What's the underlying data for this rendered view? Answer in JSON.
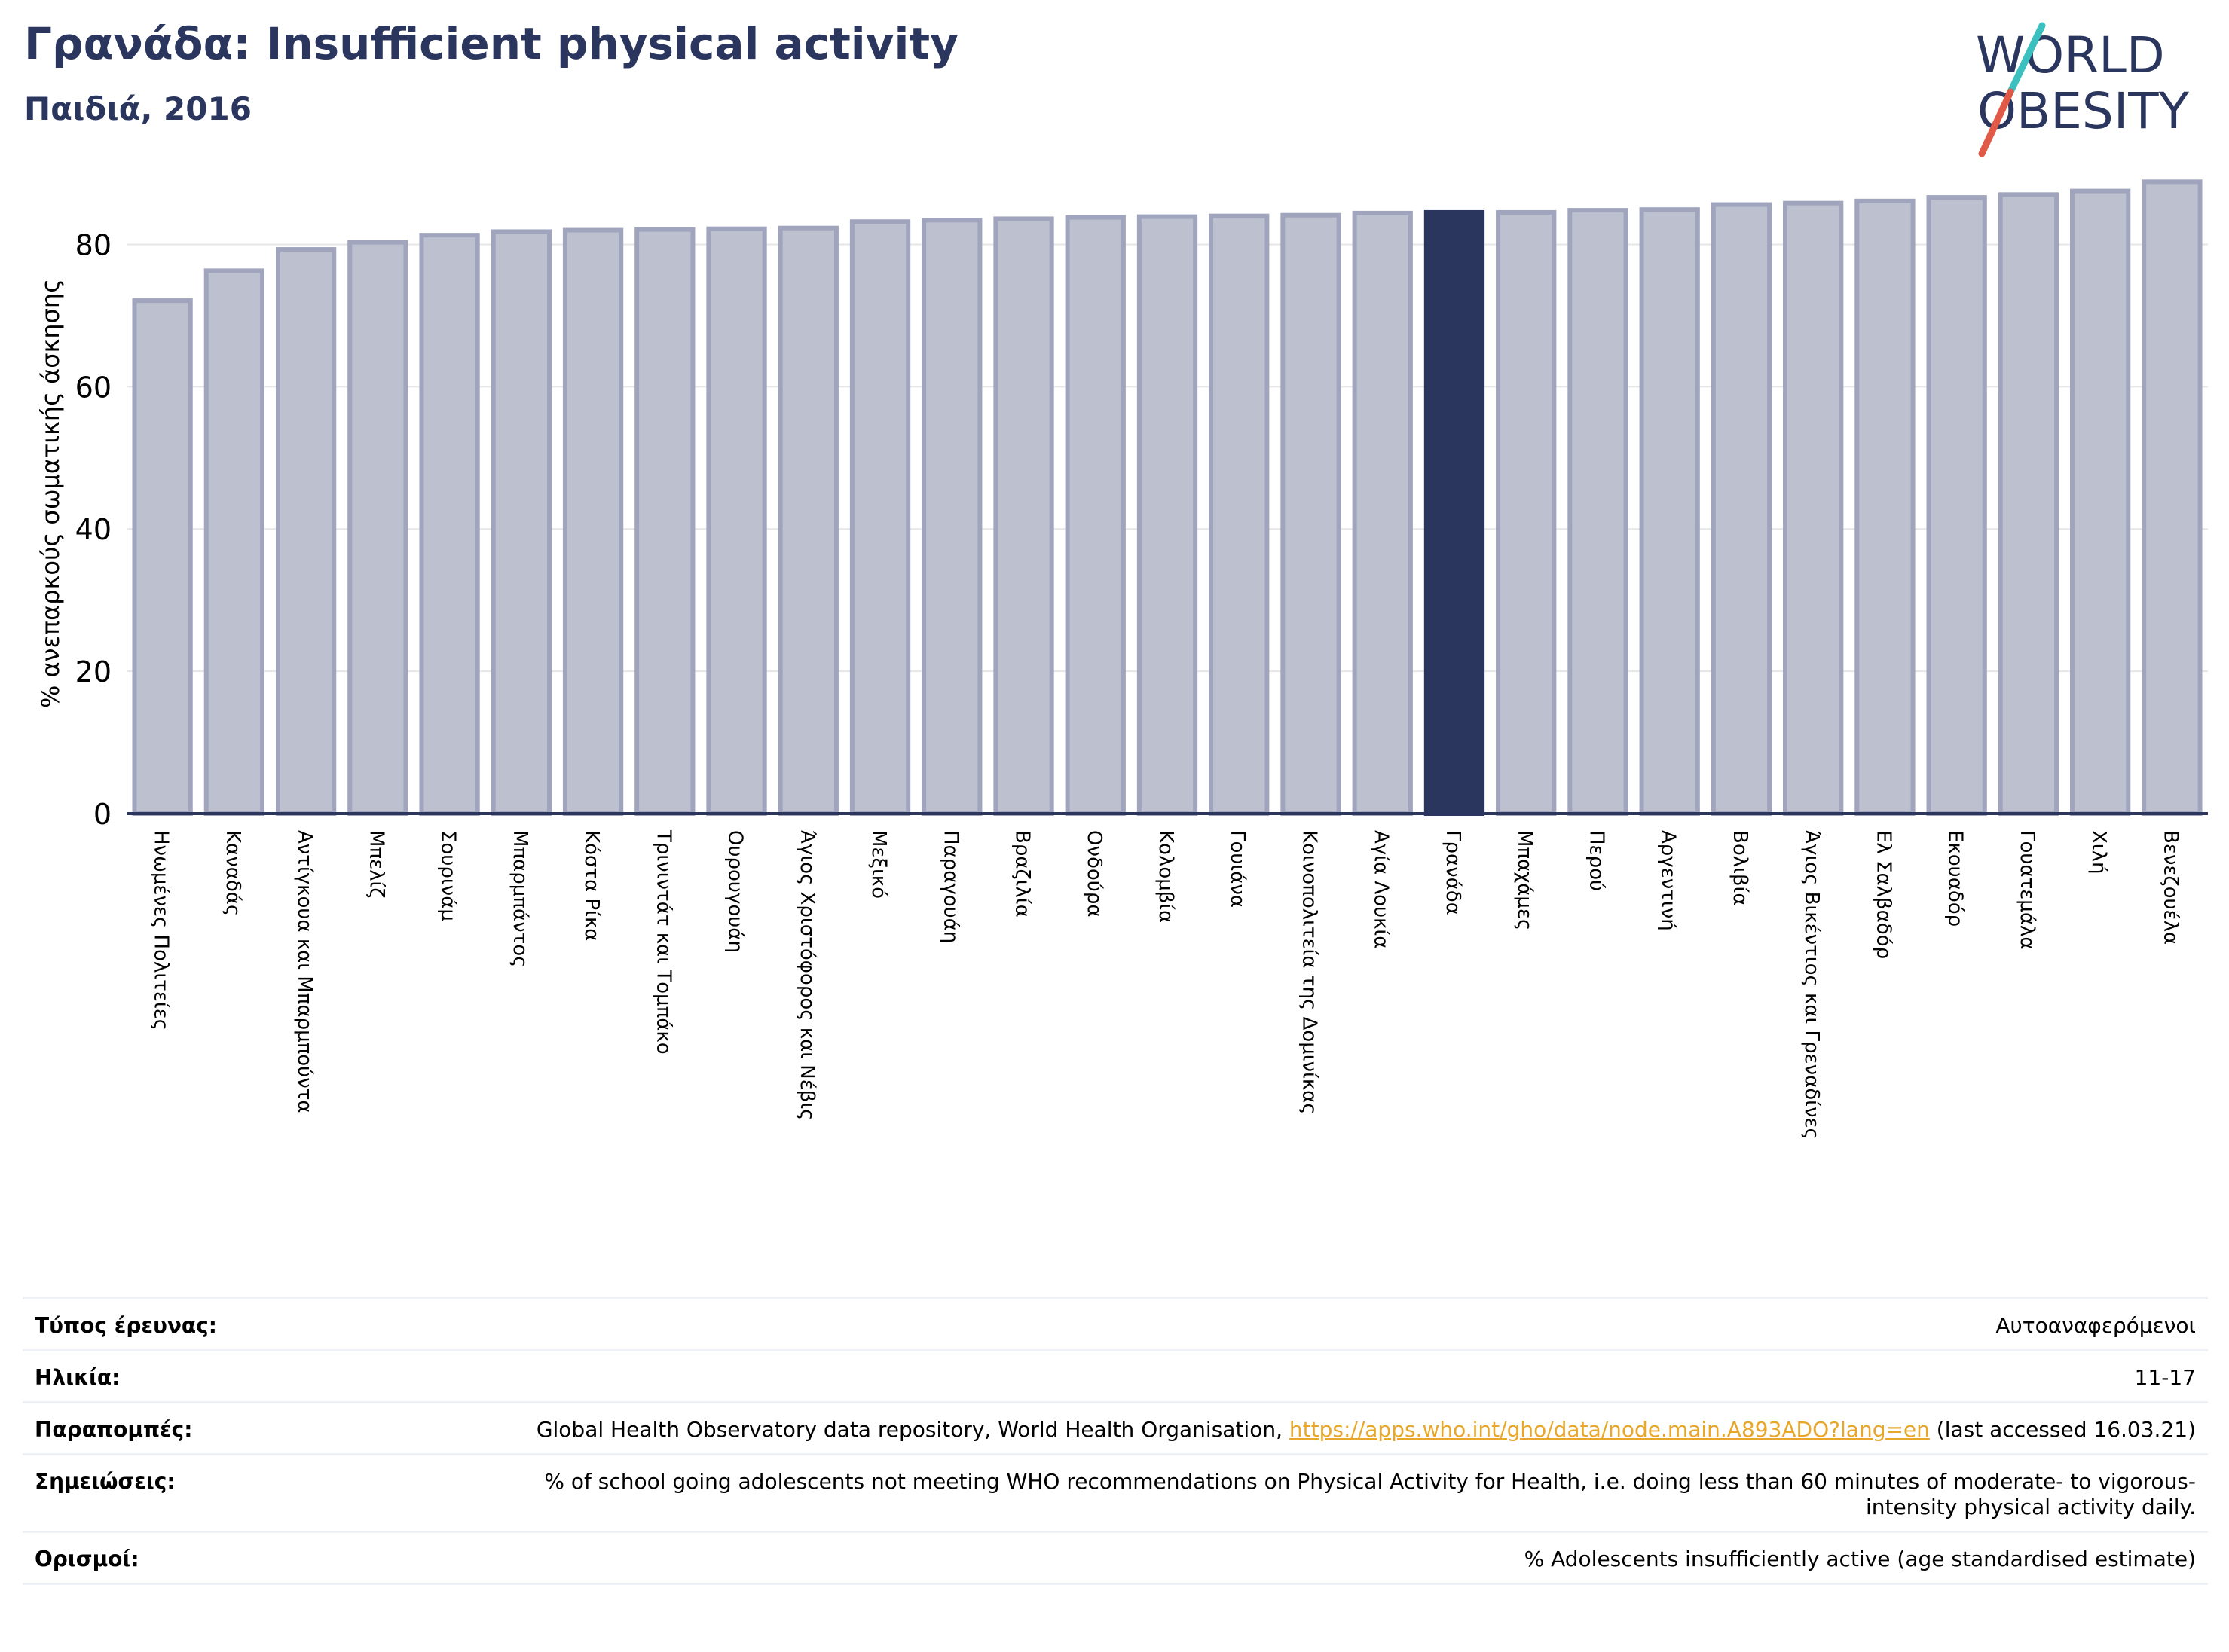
{
  "header": {
    "title": "Γρανάδα: Insufficient physical activity",
    "subtitle": "Παιδιά, 2016"
  },
  "logo": {
    "line1": "WORLD",
    "line2": "OBESITY",
    "colors": {
      "text": "#2b365e",
      "slash_teal": "#3cbfbf",
      "slash_red": "#e05a47"
    }
  },
  "colors": {
    "bar": "#bdc0cf",
    "bar_border": "#a0a5bd",
    "highlight": "#2b365e",
    "grid": "#e6e6e6",
    "axis": "#2b365e"
  },
  "chart_data": {
    "type": "bar",
    "ylabel": "% ανεπαρκούς σωματικής άσκησης",
    "xlabel": "",
    "ylim": [
      0,
      90
    ],
    "yticks": [
      0,
      20,
      40,
      60,
      80
    ],
    "grid": true,
    "highlight": "Γρανάδα",
    "categories": [
      "Ηνωμένες Πολιτείες",
      "Καναδάς",
      "Αντίγκουα και Μπαρμπούντα",
      "Μπελίζ",
      "Σουρινάμ",
      "Μπαρμπάντος",
      "Κόστα Ρίκα",
      "Τρινιντάτ και Τομπάκο",
      "Ουρουγουάη",
      "Άγιος Χριστόφορος και Νέβις",
      "Μεξικό",
      "Παραγουάη",
      "Βραζιλία",
      "Ονδούρα",
      "Κολομβία",
      "Γουιάνα",
      "Κοινοπολιτεία της Δομινίκας",
      "Αγία Λουκία",
      "Γρανάδα",
      "Μπαχάμες",
      "Περού",
      "Αργεντινή",
      "Βολιβία",
      "Άγιος Βικέντιος και Γρεναδίνες",
      "Ελ Σαλβαδόρ",
      "Εκουαδόρ",
      "Γουατεμάλα",
      "Χιλή",
      "Βενεζουέλα"
    ],
    "values": [
      72.1,
      76.3,
      79.3,
      80.3,
      81.3,
      81.8,
      82.0,
      82.1,
      82.2,
      82.3,
      83.2,
      83.4,
      83.6,
      83.8,
      83.9,
      84.0,
      84.1,
      84.4,
      84.5,
      84.5,
      84.8,
      84.9,
      85.6,
      85.8,
      86.1,
      86.6,
      87.0,
      87.5,
      88.8
    ]
  },
  "info": {
    "rows": [
      {
        "label": "Τύπος έρευνας:",
        "value": "Αυτοαναφερόμενοι"
      },
      {
        "label": "Ηλικία:",
        "value": "11-17"
      },
      {
        "label": "Παραπομπές:",
        "value_before": "Global Health Observatory data repository, World Health Organisation, ",
        "link": "https://apps.who.int/gho/data/node.main.A893ADO?lang=en",
        "value_after": " (last accessed 16.03.21)"
      },
      {
        "label": "Σημειώσεις:",
        "value": "% of school going adolescents not meeting WHO recommendations on Physical Activity for Health, i.e. doing less than 60 minutes of moderate- to vigorous-intensity physical activity daily."
      },
      {
        "label": "Ορισμοί:",
        "value": "% Adolescents insufficiently active (age standardised estimate)"
      }
    ]
  }
}
